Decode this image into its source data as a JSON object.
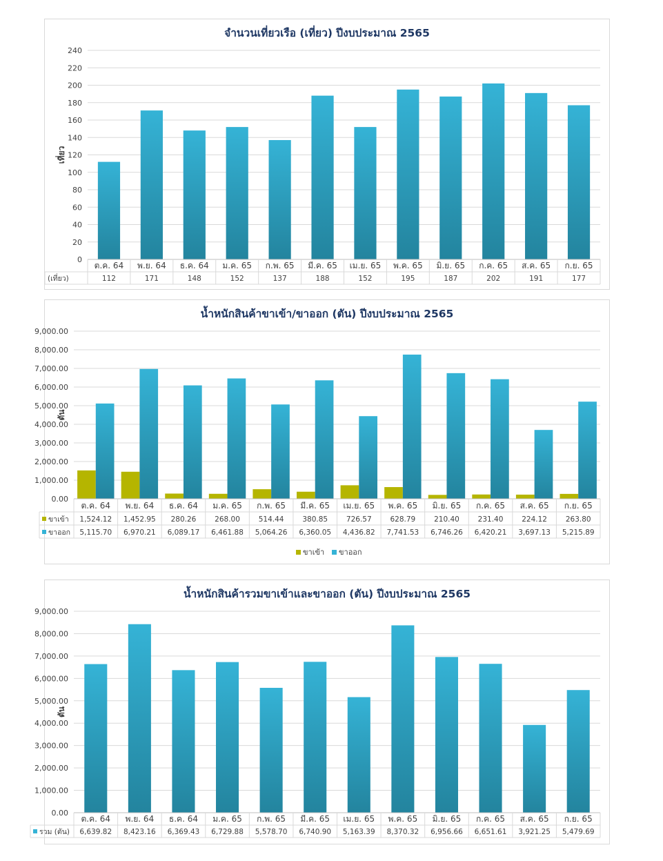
{
  "colors": {
    "outbound": "#35b3d6",
    "outbound_dark": "#23849e",
    "inbound": "#b5b500",
    "grid": "#d9d9d9",
    "title": "#1f3864"
  },
  "chart_data": [
    {
      "id": "c1",
      "type": "bar",
      "title": "จำนวนเที่ยวเรือ (เที่ยว) ปีงบประมาณ 2565",
      "ylabel": "เที่ยว",
      "ylim": [
        0,
        240
      ],
      "yticks": [
        "0",
        "20",
        "40",
        "60",
        "80",
        "100",
        "120",
        "140",
        "160",
        "180",
        "200",
        "220",
        "240"
      ],
      "categories": [
        "ต.ค. 64",
        "พ.ย. 64",
        "ธ.ค. 64",
        "ม.ค. 65",
        "ก.พ. 65",
        "มี.ค. 65",
        "เม.ย. 65",
        "พ.ค. 65",
        "มิ.ย. 65",
        "ก.ค. 65",
        "ส.ค. 65",
        "ก.ย. 65"
      ],
      "series": [
        {
          "name": "(เที่ยว)",
          "color": "#35b3d6",
          "show_key": false,
          "values": [
            112,
            171,
            148,
            152,
            137,
            188,
            152,
            195,
            187,
            202,
            191,
            177
          ],
          "labels": [
            "112",
            "171",
            "148",
            "152",
            "137",
            "188",
            "152",
            "195",
            "187",
            "202",
            "191",
            "177"
          ]
        }
      ],
      "legend": ""
    },
    {
      "id": "c2",
      "type": "bar",
      "title": "น้ำหนักสินค้าขาเข้า/ขาออก (ตัน) ปีงบประมาณ 2565",
      "ylabel": "ตัน",
      "ylim": [
        0,
        9000
      ],
      "yticks": [
        "0.00",
        "1,000.00",
        "2,000.00",
        "3,000.00",
        "4,000.00",
        "5,000.00",
        "6,000.00",
        "7,000.00",
        "8,000.00",
        "9,000.00"
      ],
      "categories": [
        "ต.ค. 64",
        "พ.ย. 64",
        "ธ.ค. 64",
        "ม.ค. 65",
        "ก.พ. 65",
        "มี.ค. 65",
        "เม.ย. 65",
        "พ.ค. 65",
        "มิ.ย. 65",
        "ก.ค. 65",
        "ส.ค. 65",
        "ก.ย. 65"
      ],
      "series": [
        {
          "name": "ขาเข้า",
          "color": "#b5b500",
          "show_key": true,
          "values": [
            1524.12,
            1452.95,
            280.26,
            268.0,
            514.44,
            380.85,
            726.57,
            628.79,
            210.4,
            231.4,
            224.12,
            263.8
          ],
          "labels": [
            "1,524.12",
            "1,452.95",
            "280.26",
            "268.00",
            "514.44",
            "380.85",
            "726.57",
            "628.79",
            "210.40",
            "231.40",
            "224.12",
            "263.80"
          ]
        },
        {
          "name": "ขาออก",
          "color": "#35b3d6",
          "show_key": true,
          "values": [
            5115.7,
            6970.21,
            6089.17,
            6461.88,
            5064.26,
            6360.05,
            4436.82,
            7741.53,
            6746.26,
            6420.21,
            3697.13,
            5215.89
          ],
          "labels": [
            "5,115.70",
            "6,970.21",
            "6,089.17",
            "6,461.88",
            "5,064.26",
            "6,360.05",
            "4,436.82",
            "7,741.53",
            "6,746.26",
            "6,420.21",
            "3,697.13",
            "5,215.89"
          ]
        }
      ],
      "legend": "bottom"
    },
    {
      "id": "c3",
      "type": "bar",
      "title": "น้ำหนักสินค้ารวมขาเข้าและขาออก (ตัน) ปีงบประมาณ 2565",
      "ylabel": "ตัน",
      "ylim": [
        0,
        9000
      ],
      "yticks": [
        "0.00",
        "1,000.00",
        "2,000.00",
        "3,000.00",
        "4,000.00",
        "5,000.00",
        "6,000.00",
        "7,000.00",
        "8,000.00",
        "9,000.00"
      ],
      "categories": [
        "ต.ค. 64",
        "พ.ย. 64",
        "ธ.ค. 64",
        "ม.ค. 65",
        "ก.พ. 65",
        "มี.ค. 65",
        "เม.ย. 65",
        "พ.ค. 65",
        "มิ.ย. 65",
        "ก.ค. 65",
        "ส.ค. 65",
        "ก.ย. 65"
      ],
      "series": [
        {
          "name": "รวม (ตัน)",
          "color": "#35b3d6",
          "show_key": true,
          "values": [
            6639.82,
            8423.16,
            6369.43,
            6729.88,
            5578.7,
            6740.9,
            5163.39,
            8370.32,
            6956.66,
            6651.61,
            3921.25,
            5479.69
          ],
          "labels": [
            "6,639.82",
            "8,423.16",
            "6,369.43",
            "6,729.88",
            "5,578.70",
            "6,740.90",
            "5,163.39",
            "8,370.32",
            "6,956.66",
            "6,651.61",
            "3,921.25",
            "5,479.69"
          ]
        }
      ],
      "legend": ""
    }
  ]
}
